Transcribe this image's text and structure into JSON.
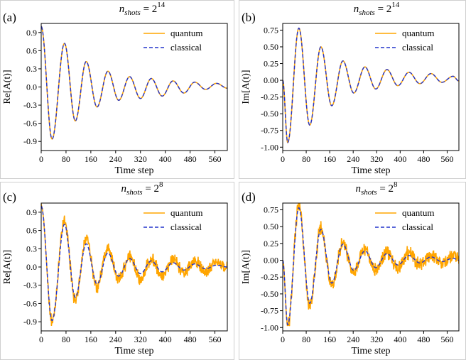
{
  "panels": [
    {
      "letter": "(a)",
      "title_base": "n",
      "title_sub": "shots",
      "title_eq": " = 2",
      "title_exp": "14"
    },
    {
      "letter": "(b)",
      "title_base": "n",
      "title_sub": "shots",
      "title_eq": " = 2",
      "title_exp": "14"
    },
    {
      "letter": "(c)",
      "title_base": "n",
      "title_sub": "shots",
      "title_eq": " = 2",
      "title_exp": "8"
    },
    {
      "letter": "(d)",
      "title_base": "n",
      "title_sub": "shots",
      "title_eq": " = 2",
      "title_exp": "8"
    }
  ],
  "colors": {
    "quantum": "#FFA500",
    "classical": "#2233CC"
  },
  "chart_data": [
    {
      "type": "line",
      "ylabel": "Re[A(t)]",
      "xlabel": "Time step",
      "xlim": [
        0,
        600
      ],
      "ylim": [
        -1.05,
        1.05
      ],
      "xticks": [
        0,
        80,
        160,
        240,
        320,
        400,
        480,
        560
      ],
      "yticks": [
        0.9,
        0.6,
        0.3,
        0.0,
        -0.3,
        -0.6,
        -0.9
      ],
      "ytick_labels": [
        "0.9",
        "0.6",
        "0.3",
        "0.0",
        "-0.3",
        "-0.6",
        "-0.9"
      ],
      "legend": "top-right",
      "grid": false,
      "x": [
        0,
        35,
        75,
        110,
        145,
        180,
        215,
        250,
        285,
        320,
        355,
        390,
        425,
        460,
        495,
        530,
        565,
        600
      ],
      "series": [
        {
          "name": "quantum",
          "values": [
            1.0,
            -0.86,
            0.72,
            -0.56,
            0.42,
            -0.33,
            0.26,
            -0.22,
            0.17,
            -0.19,
            0.14,
            -0.15,
            0.1,
            -0.1,
            0.08,
            -0.04,
            0.06,
            -0.02
          ]
        },
        {
          "name": "classical",
          "values": [
            1.0,
            -0.86,
            0.72,
            -0.56,
            0.42,
            -0.33,
            0.26,
            -0.22,
            0.17,
            -0.19,
            0.14,
            -0.15,
            0.1,
            -0.1,
            0.08,
            -0.04,
            0.06,
            -0.02
          ]
        }
      ]
    },
    {
      "type": "line",
      "ylabel": "Im[A(t)]",
      "xlabel": "Time step",
      "xlim": [
        0,
        600
      ],
      "ylim": [
        -1.05,
        0.85
      ],
      "xticks": [
        0,
        80,
        160,
        240,
        320,
        400,
        480,
        560
      ],
      "yticks": [
        0.75,
        0.5,
        0.25,
        0.0,
        -0.25,
        -0.5,
        -0.75,
        -1.0
      ],
      "ytick_labels": [
        "0.75",
        "0.50",
        "0.25",
        "0.00",
        "-0.25",
        "-0.50",
        "-0.75",
        "-1.00"
      ],
      "legend": "top-right",
      "grid": false,
      "x": [
        0,
        17,
        55,
        92,
        130,
        167,
        205,
        242,
        280,
        317,
        355,
        392,
        430,
        467,
        505,
        542,
        580,
        600
      ],
      "series": [
        {
          "name": "quantum",
          "values": [
            0.0,
            -0.93,
            0.78,
            -0.67,
            0.5,
            -0.38,
            0.29,
            -0.19,
            0.2,
            -0.13,
            0.16,
            -0.08,
            0.12,
            -0.05,
            0.1,
            -0.03,
            0.06,
            -0.01
          ]
        },
        {
          "name": "classical",
          "values": [
            0.0,
            -0.93,
            0.78,
            -0.67,
            0.5,
            -0.38,
            0.29,
            -0.19,
            0.2,
            -0.13,
            0.16,
            -0.08,
            0.12,
            -0.05,
            0.1,
            -0.03,
            0.06,
            -0.01
          ]
        }
      ]
    },
    {
      "type": "line",
      "ylabel": "Re[A(t)]",
      "xlabel": "Time step",
      "xlim": [
        0,
        600
      ],
      "ylim": [
        -1.05,
        1.05
      ],
      "xticks": [
        0,
        80,
        160,
        240,
        320,
        400,
        480,
        560
      ],
      "yticks": [
        0.9,
        0.6,
        0.3,
        0.0,
        -0.3,
        -0.6,
        -0.9
      ],
      "ytick_labels": [
        "0.9",
        "0.6",
        "0.3",
        "0.0",
        "-0.3",
        "-0.6",
        "-0.9"
      ],
      "legend": "top-right",
      "grid": false,
      "x": [
        0,
        35,
        75,
        110,
        145,
        180,
        215,
        250,
        285,
        320,
        355,
        390,
        425,
        460,
        495,
        530,
        565,
        600
      ],
      "series": [
        {
          "name": "quantum",
          "values": [
            1.0,
            -0.9,
            0.76,
            -0.55,
            0.45,
            -0.32,
            0.3,
            -0.2,
            0.16,
            -0.18,
            0.12,
            -0.14,
            0.12,
            -0.1,
            0.1,
            -0.08,
            0.08,
            0.0
          ]
        },
        {
          "name": "classical",
          "values": [
            1.0,
            -0.88,
            0.7,
            -0.5,
            0.38,
            -0.28,
            0.23,
            -0.15,
            0.14,
            -0.11,
            0.1,
            -0.08,
            0.07,
            -0.05,
            0.05,
            -0.03,
            0.03,
            0.0
          ]
        }
      ]
    },
    {
      "type": "line",
      "ylabel": "Im[A(t)]",
      "xlabel": "Time step",
      "xlim": [
        0,
        600
      ],
      "ylim": [
        -1.05,
        0.85
      ],
      "xticks": [
        0,
        80,
        160,
        240,
        320,
        400,
        480,
        560
      ],
      "yticks": [
        0.75,
        0.5,
        0.25,
        0.0,
        -0.25,
        -0.5,
        -0.75,
        -1.0
      ],
      "ytick_labels": [
        "0.75",
        "0.50",
        "0.25",
        "0.00",
        "-0.25",
        "-0.50",
        "-0.75",
        "-1.00"
      ],
      "legend": "top-right",
      "grid": false,
      "x": [
        0,
        17,
        55,
        92,
        130,
        167,
        205,
        242,
        280,
        317,
        355,
        392,
        430,
        467,
        505,
        542,
        580,
        600
      ],
      "series": [
        {
          "name": "quantum",
          "values": [
            0.0,
            -0.98,
            0.82,
            -0.68,
            0.48,
            -0.38,
            0.26,
            -0.18,
            0.16,
            -0.14,
            0.12,
            -0.1,
            0.1,
            -0.06,
            0.08,
            -0.04,
            0.05,
            0.0
          ]
        },
        {
          "name": "classical",
          "values": [
            0.0,
            -0.96,
            0.78,
            -0.64,
            0.46,
            -0.34,
            0.24,
            -0.15,
            0.14,
            -0.11,
            0.1,
            -0.07,
            0.07,
            -0.04,
            0.05,
            -0.02,
            0.03,
            0.0
          ]
        }
      ]
    }
  ]
}
